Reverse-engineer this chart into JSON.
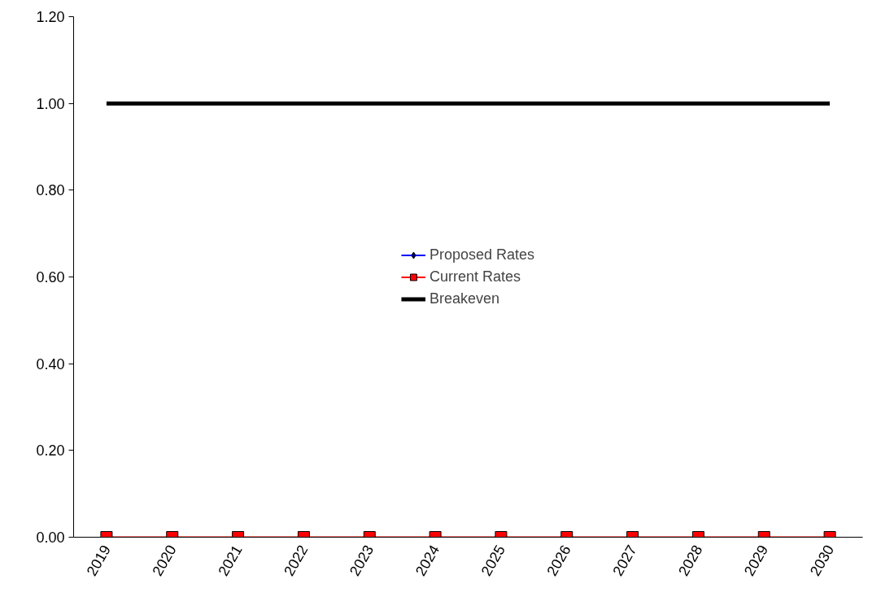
{
  "chart_data": {
    "type": "line",
    "categories": [
      "2019",
      "2020",
      "2021",
      "2022",
      "2023",
      "2024",
      "2025",
      "2026",
      "2027",
      "2028",
      "2029",
      "2030"
    ],
    "series": [
      {
        "name": "Proposed Rates",
        "color": "#0000ff",
        "marker": "diamond",
        "values": [
          null,
          null,
          null,
          null,
          null,
          null,
          null,
          null,
          null,
          null,
          null,
          null
        ]
      },
      {
        "name": "Current Rates",
        "color": "#ff0000",
        "marker": "square",
        "values": [
          0,
          0,
          0,
          0,
          0,
          0,
          0,
          0,
          0,
          0,
          0,
          0
        ]
      },
      {
        "name": "Breakeven",
        "color": "#000000",
        "marker": "none",
        "values": [
          1,
          1,
          1,
          1,
          1,
          1,
          1,
          1,
          1,
          1,
          1,
          1
        ]
      }
    ],
    "ylim": [
      0,
      1.2
    ],
    "yticks": [
      {
        "value": 0,
        "label": "0.00"
      },
      {
        "value": 0.2,
        "label": "0.20"
      },
      {
        "value": 0.4,
        "label": "0.40"
      },
      {
        "value": 0.6,
        "label": "0.60"
      },
      {
        "value": 0.8,
        "label": "0.80"
      },
      {
        "value": 1.0,
        "label": "1.00"
      },
      {
        "value": 1.2,
        "label": "1.20"
      }
    ],
    "grid": false,
    "legend": "center"
  }
}
